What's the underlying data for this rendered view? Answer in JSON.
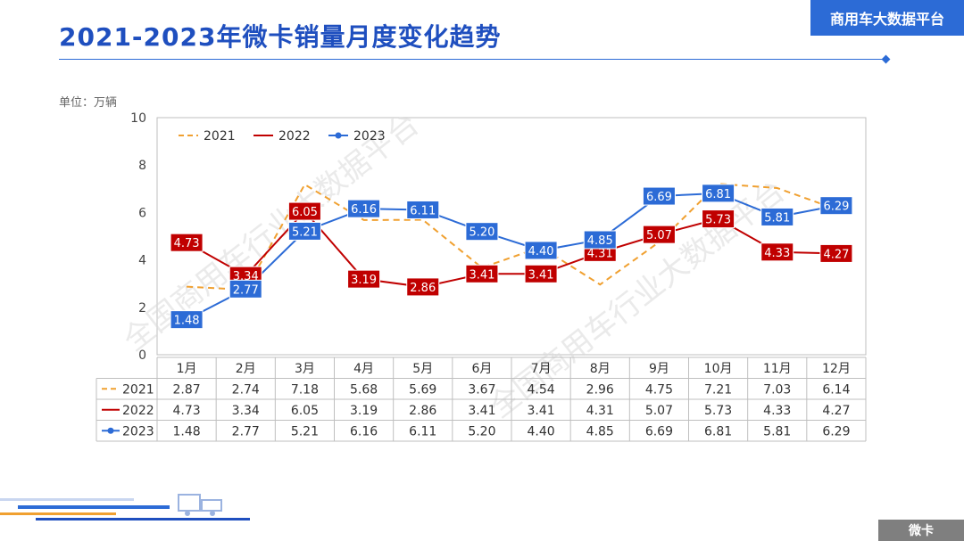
{
  "header": {
    "title": "2021-2023年微卡销量月度变化趋势",
    "brand": "商用车大数据平台",
    "unit_label": "单位：万辆",
    "watermark": "全国商用车行业大数据平台"
  },
  "footer": {
    "tag": "微卡"
  },
  "colors": {
    "s2021": "#f0a030",
    "s2022": "#c00000",
    "s2023": "#2c6bd6",
    "accent": "#1f4fbf"
  },
  "chart_data": {
    "type": "line",
    "title": "",
    "xlabel": "",
    "ylabel": "",
    "ylim": [
      0,
      10
    ],
    "yticks": [
      0,
      2,
      4,
      6,
      8,
      10
    ],
    "grid": false,
    "legend": "top-left",
    "categories": [
      "1月",
      "2月",
      "3月",
      "4月",
      "5月",
      "6月",
      "7月",
      "8月",
      "9月",
      "10月",
      "11月",
      "12月"
    ],
    "series": [
      {
        "name": "2021",
        "style": "dashed",
        "values": [
          2.87,
          2.74,
          7.18,
          5.68,
          5.69,
          3.67,
          4.54,
          2.96,
          4.75,
          7.21,
          7.03,
          6.14
        ]
      },
      {
        "name": "2022",
        "style": "solid",
        "values": [
          4.73,
          3.34,
          6.05,
          3.19,
          2.86,
          3.41,
          3.41,
          4.31,
          5.07,
          5.73,
          4.33,
          4.27
        ]
      },
      {
        "name": "2023",
        "style": "solid-marker",
        "values": [
          1.48,
          2.77,
          5.21,
          6.16,
          6.11,
          5.2,
          4.4,
          4.85,
          6.69,
          6.81,
          5.81,
          6.29
        ]
      }
    ]
  }
}
